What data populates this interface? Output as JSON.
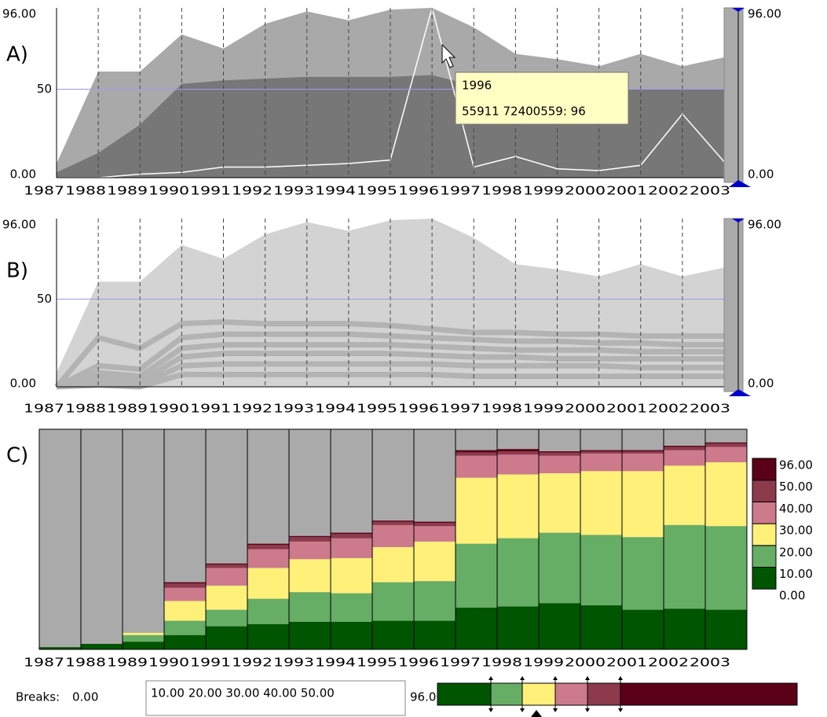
{
  "chart_data": [
    {
      "type": "line",
      "title": "A)",
      "categories": [
        "1987",
        "1988",
        "1989",
        "1990",
        "1991",
        "1992",
        "1993",
        "1994",
        "1995",
        "1996",
        "1997",
        "1998",
        "1999",
        "2000",
        "2001",
        "2002",
        "2003"
      ],
      "ylim": [
        0,
        96
      ],
      "yticks": [
        {
          "value": 0,
          "label": "0.00"
        },
        50,
        {
          "value": 96,
          "label": "96.00"
        }
      ],
      "ref_color": "#9c9cf0",
      "grid": true,
      "series": [
        {
          "color": "#a9a9a9",
          "fill": true,
          "values": [
            8,
            60,
            60,
            81,
            73,
            87,
            94,
            89,
            95,
            96,
            85,
            70,
            67,
            63,
            70,
            63,
            68
          ]
        },
        {
          "color": "#777777",
          "fill": true,
          "values": [
            3,
            14,
            30,
            53,
            55,
            56,
            57,
            57,
            57,
            58,
            52,
            51,
            50,
            50,
            50,
            50,
            50
          ]
        },
        {
          "color": "#ffffff",
          "values": [
            0,
            0,
            2,
            3,
            6,
            6,
            7,
            8,
            10,
            96,
            6,
            12,
            5,
            4,
            7,
            36,
            9
          ]
        }
      ],
      "annotations": [
        "1996",
        "55911 72400559: 96"
      ]
    },
    {
      "type": "line",
      "title": "B)",
      "categories": [
        "1987",
        "1988",
        "1989",
        "1990",
        "1991",
        "1992",
        "1993",
        "1994",
        "1995",
        "1996",
        "1997",
        "1998",
        "1999",
        "2000",
        "2001",
        "2002",
        "2003"
      ],
      "ylim": [
        0,
        96
      ],
      "yticks": [
        {
          "value": 0,
          "label": "0.00"
        },
        50,
        {
          "value": 96,
          "label": "96.00"
        }
      ],
      "ref_color": "#9c9cf0",
      "grid": true,
      "series": [
        {
          "color": "#d3d3d3",
          "fill": true,
          "values": [
            8,
            60,
            60,
            81,
            73,
            87,
            94,
            89,
            95,
            96,
            85,
            70,
            67,
            63,
            70,
            63,
            68
          ]
        },
        {
          "color": "#b3b3b3",
          "width": 7,
          "values": [
            0,
            28,
            22,
            36,
            37,
            36,
            36,
            36,
            35,
            33,
            31,
            31,
            30,
            30,
            29,
            29,
            29
          ]
        },
        {
          "color": "#b3b3b3",
          "width": 7,
          "values": [
            0,
            12,
            10,
            28,
            30,
            30,
            30,
            30,
            29,
            28,
            27,
            26,
            26,
            25,
            25,
            24,
            24
          ]
        },
        {
          "color": "#b3b3b3",
          "width": 7,
          "values": [
            0,
            8,
            6,
            22,
            24,
            24,
            24,
            24,
            24,
            23,
            22,
            21,
            21,
            21,
            20,
            20,
            20
          ]
        },
        {
          "color": "#b3b3b3",
          "width": 7,
          "values": [
            0,
            5,
            3,
            17,
            19,
            19,
            19,
            19,
            19,
            18,
            17,
            17,
            16,
            16,
            16,
            16,
            16
          ]
        },
        {
          "color": "#b3b3b3",
          "width": 7,
          "values": [
            0,
            3,
            1,
            12,
            13,
            13,
            13,
            13,
            13,
            13,
            12,
            12,
            12,
            12,
            11,
            11,
            11
          ]
        },
        {
          "color": "#b3b3b3",
          "width": 7,
          "values": [
            0,
            1,
            0,
            7,
            7,
            7,
            7,
            7,
            7,
            7,
            6,
            6,
            6,
            6,
            6,
            6,
            6
          ]
        }
      ]
    },
    {
      "type": "bar",
      "title": "C)",
      "stacked": true,
      "categories": [
        "1987",
        "1988",
        "1989",
        "1990",
        "1991",
        "1992",
        "1993",
        "1994",
        "1995",
        "1996",
        "1997",
        "1998",
        "1999",
        "2000",
        "2001",
        "2002",
        "2003"
      ],
      "ylim": [
        0,
        100
      ],
      "background": "#aaaaaa",
      "series": [
        {
          "color": "#005500",
          "values": [
            1,
            2.5,
            3.5,
            6.5,
            10.5,
            11.5,
            12.5,
            12.5,
            13,
            13,
            19,
            19.5,
            21,
            20,
            18,
            18.5,
            18
          ]
        },
        {
          "color": "#66ad66",
          "values": [
            0,
            0,
            3,
            6.5,
            7.5,
            11.5,
            13.5,
            13,
            17.5,
            18,
            29,
            31,
            32,
            32,
            33,
            38,
            38
          ]
        },
        {
          "color": "#fff07a",
          "values": [
            0,
            0,
            1,
            9,
            11,
            14,
            15,
            16,
            16,
            18,
            30,
            29,
            27,
            29,
            30,
            27,
            29
          ]
        },
        {
          "color": "#cc7a8c",
          "values": [
            0,
            0,
            0,
            6,
            8,
            8.5,
            8,
            9,
            10,
            7,
            10,
            9,
            8,
            8,
            8,
            7,
            7
          ]
        },
        {
          "color": "#8c3a4c",
          "values": [
            0,
            0,
            0,
            2,
            1.5,
            2,
            2,
            2,
            1.5,
            1.5,
            1.5,
            1.5,
            1.5,
            1,
            1,
            1.5,
            1.5
          ]
        },
        {
          "color": "#5a0018",
          "values": [
            0,
            0,
            0,
            0.5,
            0.5,
            0.5,
            0.5,
            0.5,
            0.5,
            0.5,
            1,
            1,
            0.5,
            0.5,
            0.5,
            0.5,
            0.5
          ]
        }
      ],
      "legend_breaks": [
        "96.00",
        "50.00",
        "40.00",
        "30.00",
        "20.00",
        "10.00",
        "0.00"
      ]
    }
  ],
  "controls": {
    "label": "Breaks:",
    "min": "0.00",
    "breaks_text": "10.00 20.00 30.00 40.00 50.00",
    "max": "96.00"
  }
}
